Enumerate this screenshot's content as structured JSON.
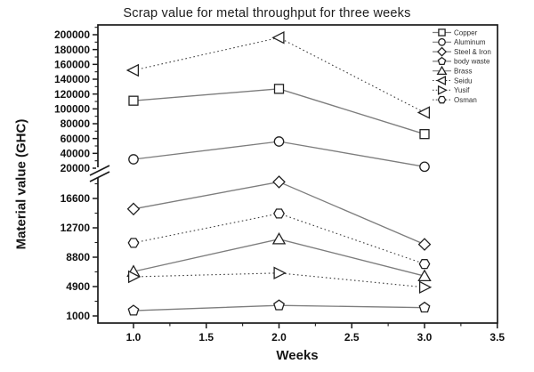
{
  "page": {
    "title": "Scrap value for metal throughput for three weeks"
  },
  "colors": {
    "bg": "#ffffff",
    "frame": "#1a1a1a",
    "text": "#161616",
    "solid_series": "#7d7d7d",
    "dotted_series": "#3c3c3c",
    "marker": "#222222"
  },
  "chart_data": {
    "type": "line",
    "title": "Scrap value for metal throughput for three weeks",
    "xlabel": "Weeks",
    "ylabel": "Material value (GHC)",
    "categories_x": [
      1,
      2,
      3
    ],
    "xticks": [
      "1.0",
      "1.5",
      "2.0",
      "2.5",
      "3.0",
      "3.5"
    ],
    "xlim": [
      0.75,
      3.52
    ],
    "grid": false,
    "legend_position": "top-right",
    "y_axis": {
      "broken": true,
      "break_between": [
        18800,
        20000
      ],
      "upper_ticks": [
        20000,
        40000,
        60000,
        80000,
        100000,
        120000,
        140000,
        160000,
        180000,
        200000
      ],
      "lower_ticks": [
        1000,
        4900,
        8800,
        12700,
        16600
      ],
      "upper_range": [
        20000,
        200000
      ],
      "lower_range": [
        1000,
        16600
      ]
    },
    "series": [
      {
        "name": "Copper",
        "marker": "square",
        "line": "solid",
        "values": [
          111000,
          127000,
          66000
        ]
      },
      {
        "name": "Aluminum",
        "marker": "circle",
        "line": "solid",
        "values": [
          32000,
          56000,
          22000
        ]
      },
      {
        "name": "Steel & Iron",
        "marker": "diamond",
        "line": "solid",
        "values": [
          15200,
          18800,
          10500
        ]
      },
      {
        "name": "body waste",
        "marker": "pentagon",
        "line": "solid",
        "values": [
          1700,
          2400,
          2100
        ]
      },
      {
        "name": "Brass",
        "marker": "triangle-up",
        "line": "solid",
        "values": [
          6900,
          11200,
          6300
        ]
      },
      {
        "name": "Seidu",
        "marker": "triangle-left",
        "line": "dotted",
        "values": [
          152000,
          196000,
          95000
        ]
      },
      {
        "name": "Yusif",
        "marker": "triangle-right",
        "line": "dotted",
        "values": [
          6200,
          6700,
          4800
        ]
      },
      {
        "name": "Osman",
        "marker": "hexagon",
        "line": "dotted",
        "values": [
          10700,
          14600,
          7900
        ]
      }
    ]
  }
}
